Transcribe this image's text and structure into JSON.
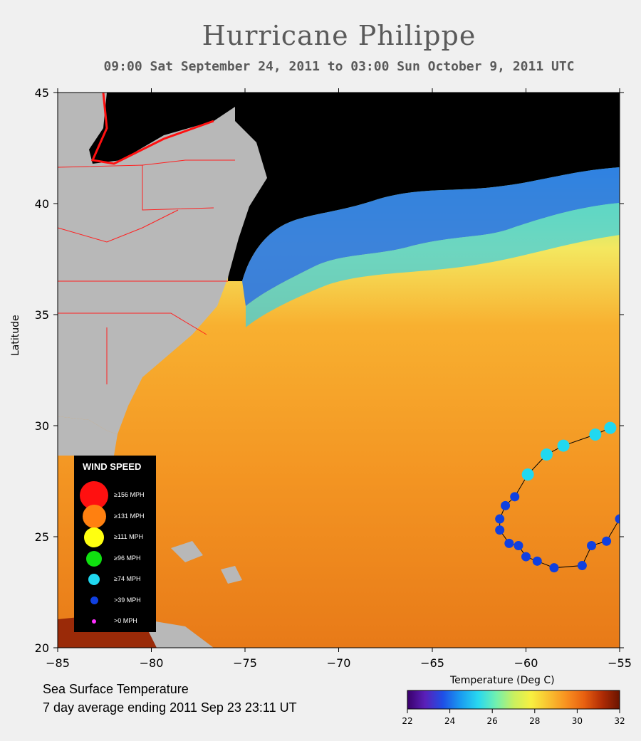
{
  "title": "Hurricane Philippe",
  "subtitle": "09:00 Sat September 24, 2011 to 03:00 Sun October  9, 2011  UTC",
  "map": {
    "lon_range": [
      -85,
      -55
    ],
    "lat_range": [
      20,
      45
    ],
    "x_ticks": [
      "−85",
      "−80",
      "−75",
      "−70",
      "−65",
      "−60",
      "−55"
    ],
    "y_ticks": [
      "20",
      "25",
      "30",
      "35",
      "40",
      "45"
    ],
    "y_axis_label": "Latitude"
  },
  "sst_label_1": "Sea Surface Temperature",
  "sst_label_2": "7 day average ending 2011 Sep 23 23:11 UT",
  "colorbar": {
    "title": "Temperature (Deg C)",
    "ticks": [
      "22",
      "24",
      "26",
      "28",
      "30",
      "32"
    ],
    "range": [
      22,
      32
    ],
    "colors": [
      "#3a006b",
      "#5a1fb8",
      "#1f4fe6",
      "#1a9bf0",
      "#28d8f0",
      "#70f0b0",
      "#c8f060",
      "#f8f040",
      "#f8c030",
      "#f89020",
      "#e86010",
      "#b02c05",
      "#6a1400"
    ]
  },
  "legend": {
    "title": "WIND SPEED",
    "items": [
      {
        "label": "≥156 MPH",
        "color": "#ff1010",
        "size": 40
      },
      {
        "label": "≥131 MPH",
        "color": "#ff8010",
        "size": 33
      },
      {
        "label": "≥111 MPH",
        "color": "#ffff10",
        "size": 28
      },
      {
        "label": "≥96 MPH",
        "color": "#10e010",
        "size": 22
      },
      {
        "label": "≥74 MPH",
        "color": "#20d8f0",
        "size": 16
      },
      {
        "label": ">39 MPH",
        "color": "#1040e0",
        "size": 11
      },
      {
        "label": ">0 MPH",
        "color": "#ff30ff",
        "size": 6
      }
    ]
  },
  "track": [
    {
      "lon": -55.5,
      "lat": 29.9,
      "cat": "hurricane"
    },
    {
      "lon": -56.3,
      "lat": 29.6,
      "cat": "hurricane"
    },
    {
      "lon": -58.0,
      "lat": 29.1,
      "cat": "hurricane"
    },
    {
      "lon": -58.9,
      "lat": 28.7,
      "cat": "hurricane"
    },
    {
      "lon": -59.9,
      "lat": 27.8,
      "cat": "hurricane"
    },
    {
      "lon": -60.6,
      "lat": 26.8,
      "cat": "storm"
    },
    {
      "lon": -61.1,
      "lat": 26.4,
      "cat": "storm"
    },
    {
      "lon": -61.4,
      "lat": 25.8,
      "cat": "storm"
    },
    {
      "lon": -61.4,
      "lat": 25.3,
      "cat": "storm"
    },
    {
      "lon": -60.9,
      "lat": 24.7,
      "cat": "storm"
    },
    {
      "lon": -60.4,
      "lat": 24.6,
      "cat": "storm"
    },
    {
      "lon": -60.0,
      "lat": 24.1,
      "cat": "storm"
    },
    {
      "lon": -59.4,
      "lat": 23.9,
      "cat": "storm"
    },
    {
      "lon": -58.5,
      "lat": 23.6,
      "cat": "storm"
    },
    {
      "lon": -57.0,
      "lat": 23.7,
      "cat": "storm"
    },
    {
      "lon": -56.5,
      "lat": 24.6,
      "cat": "storm"
    },
    {
      "lon": -55.7,
      "lat": 24.8,
      "cat": "storm"
    },
    {
      "lon": -55.0,
      "lat": 25.8,
      "cat": "storm"
    }
  ]
}
